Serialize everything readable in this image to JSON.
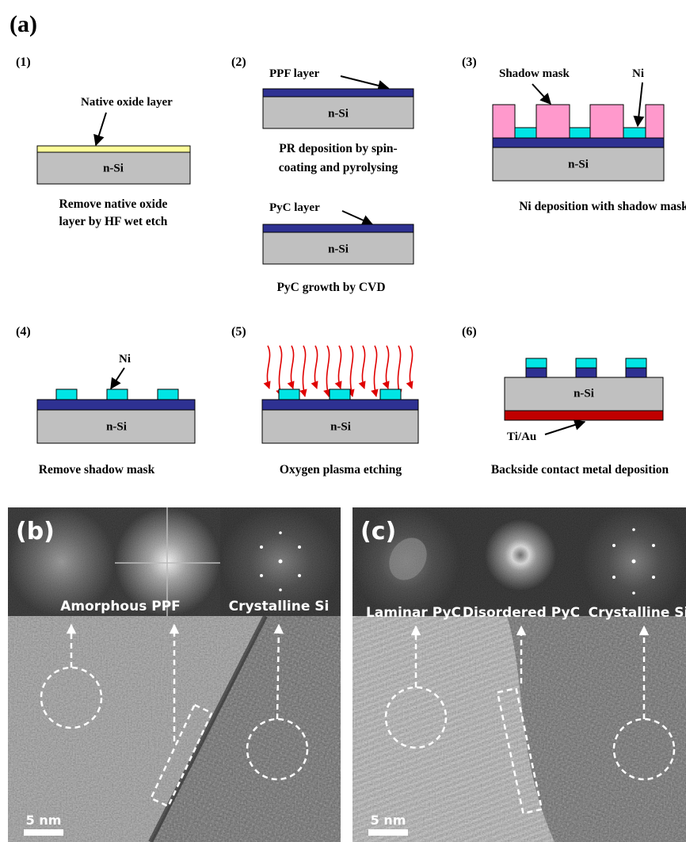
{
  "panel_a": {
    "label": "(a)",
    "steps": [
      {
        "number": "(1)",
        "annotations": [
          "Native oxide layer"
        ],
        "substrate": "n-Si",
        "caption": [
          "Remove native oxide",
          "layer by HF wet etch"
        ]
      },
      {
        "number": "(2)",
        "stages": [
          {
            "annotation": "PPF layer",
            "substrate": "n-Si",
            "caption": [
              "PR deposition by spin-",
              "coating and pyrolysing"
            ]
          },
          {
            "annotation": "PyC layer",
            "substrate": "n-Si",
            "caption": [
              "PyC growth by CVD"
            ]
          }
        ]
      },
      {
        "number": "(3)",
        "annotations": [
          "Shadow mask",
          "Ni"
        ],
        "substrate": "n-Si",
        "caption": [
          "Ni deposition with shadow mask"
        ]
      },
      {
        "number": "(4)",
        "annotations": [
          "Ni"
        ],
        "substrate": "n-Si",
        "caption": [
          "Remove shadow mask"
        ]
      },
      {
        "number": "(5)",
        "substrate": "n-Si",
        "caption": [
          "Oxygen plasma etching"
        ]
      },
      {
        "number": "(6)",
        "annotations": [
          "Ti/Au"
        ],
        "substrate": "n-Si",
        "caption": [
          "Backside contact metal deposition"
        ]
      }
    ]
  },
  "panel_b": {
    "label": "(b)",
    "fft_labels": [
      "Amorphous PPF",
      "Crystalline Si"
    ],
    "scale_bar": "5 nm"
  },
  "panel_c": {
    "label": "(c)",
    "fft_labels": [
      "Laminar PyC",
      "Disordered PyC",
      "Crystalline Si"
    ],
    "scale_bar": "5 nm"
  }
}
